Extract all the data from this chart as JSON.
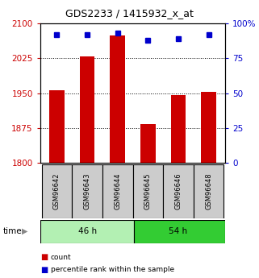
{
  "title": "GDS2233 / 1415932_x_at",
  "samples": [
    "GSM96642",
    "GSM96643",
    "GSM96644",
    "GSM96645",
    "GSM96646",
    "GSM96648"
  ],
  "counts": [
    1957,
    2030,
    2075,
    1883,
    1945,
    1952
  ],
  "percentiles": [
    92,
    92,
    93,
    88,
    89,
    92
  ],
  "groups": [
    "46 h",
    "46 h",
    "46 h",
    "54 h",
    "54 h",
    "54 h"
  ],
  "group_colors": {
    "46 h": "#b3f0b3",
    "54 h": "#33cc33"
  },
  "bar_color": "#cc0000",
  "dot_color": "#0000cc",
  "ylim_left": [
    1800,
    2100
  ],
  "ylim_right": [
    0,
    100
  ],
  "yticks_left": [
    1800,
    1875,
    1950,
    2025,
    2100
  ],
  "yticks_right": [
    0,
    25,
    50,
    75,
    100
  ],
  "ylabel_left_color": "#cc0000",
  "ylabel_right_color": "#0000cc",
  "label_box_color": "#cccccc",
  "legend_count": "count",
  "legend_percentile": "percentile rank within the sample"
}
